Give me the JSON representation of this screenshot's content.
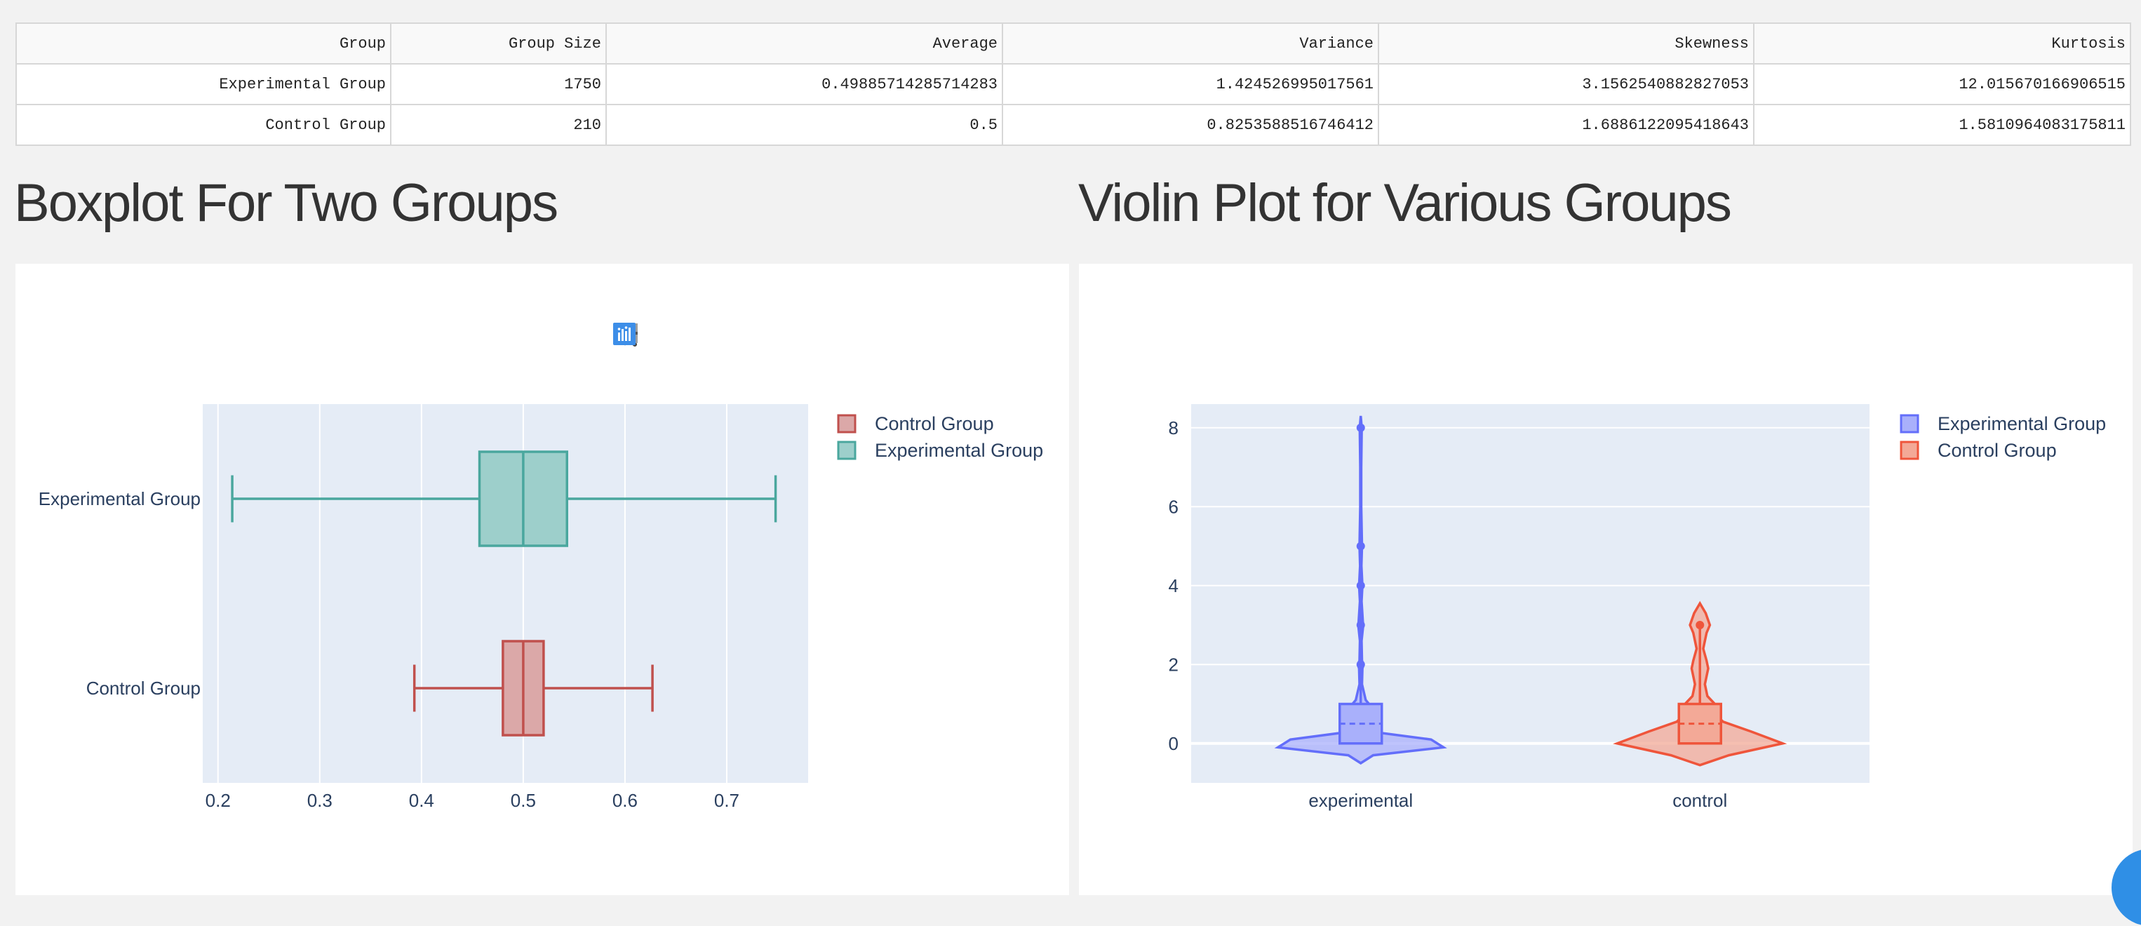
{
  "stats_table": {
    "headers": [
      "Group",
      "Group Size",
      "Average",
      "Variance",
      "Skewness",
      "Kurtosis"
    ],
    "rows": [
      [
        "Experimental Group",
        "1750",
        "0.49885714285714283",
        "1.424526995017561",
        "3.1562540882827053",
        "12.015670166906515"
      ],
      [
        "Control Group",
        "210",
        "0.5",
        "0.8253588516746412",
        "1.6886122095418643",
        "1.5810964083175811"
      ]
    ]
  },
  "boxplot": {
    "title": "Boxplot For Two Groups",
    "modebar": [
      "camera-icon",
      "zoom-icon",
      "pan-icon",
      "zoom-in-icon",
      "zoom-out-icon",
      "autoscale-icon",
      "reset-axes-icon",
      "spike-lines-icon",
      "hover-closest-icon",
      "hover-compare-icon",
      "plotly-logo-icon"
    ]
  },
  "violin": {
    "title": "Violin Plot for Various Groups"
  },
  "chart_data": [
    {
      "type": "box",
      "orientation": "horizontal",
      "title": "Boxplot For Two Groups",
      "xlim": [
        0.185,
        0.78
      ],
      "xticks": [
        "0.2",
        "0.3",
        "0.4",
        "0.5",
        "0.6",
        "0.7"
      ],
      "xtick_values": [
        0.2,
        0.3,
        0.4,
        0.5,
        0.6,
        0.7
      ],
      "grid": true,
      "legend_position": "top-right",
      "legend": [
        "Control Group",
        "Experimental Group"
      ],
      "series": [
        {
          "name": "Experimental Group",
          "color": "#4aa79e",
          "fill": "#9dcfcb",
          "min": 0.214,
          "q1": 0.457,
          "median": 0.5,
          "q3": 0.543,
          "max": 0.748
        },
        {
          "name": "Control Group",
          "color": "#c0504d",
          "fill": "#dba8a8",
          "min": 0.393,
          "q1": 0.48,
          "median": 0.5,
          "q3": 0.52,
          "max": 0.627
        }
      ]
    },
    {
      "type": "violin",
      "title": "Violin Plot for Various Groups",
      "categories": [
        "experimental",
        "control"
      ],
      "ylim": [
        -1,
        8.6
      ],
      "yticks": [
        "0",
        "2",
        "4",
        "6",
        "8"
      ],
      "ytick_values": [
        0,
        2,
        4,
        6,
        8
      ],
      "grid": true,
      "legend_position": "top-right",
      "legend": [
        "Experimental Group",
        "Control Group"
      ],
      "series": [
        {
          "name": "Experimental Group",
          "category": "experimental",
          "color": "#636efa",
          "fill": "#a9b0fb",
          "q1": 0,
          "median": 0,
          "q3": 1,
          "mean": 0.5,
          "upper_fence": 8,
          "outliers": [
            2,
            3,
            4,
            5,
            8
          ],
          "density": [
            [
              -0.5,
              0
            ],
            [
              -0.3,
              0.15
            ],
            [
              -0.1,
              1.0
            ],
            [
              0.1,
              0.85
            ],
            [
              0.3,
              0.12
            ],
            [
              0.6,
              0.04
            ],
            [
              0.9,
              0.07
            ],
            [
              1.0,
              0.1
            ],
            [
              1.1,
              0.06
            ],
            [
              1.5,
              0.015
            ],
            [
              1.9,
              0.02
            ],
            [
              2.0,
              0.035
            ],
            [
              2.1,
              0.015
            ],
            [
              2.6,
              0.01
            ],
            [
              2.9,
              0.025
            ],
            [
              3.0,
              0.03
            ],
            [
              3.1,
              0.025
            ],
            [
              3.6,
              0.01
            ],
            [
              4.0,
              0.02
            ],
            [
              4.5,
              0.008
            ],
            [
              5.0,
              0.015
            ],
            [
              6.0,
              0.006
            ],
            [
              7.0,
              0.006
            ],
            [
              8.0,
              0.012
            ],
            [
              8.3,
              0
            ]
          ]
        },
        {
          "name": "Control Group",
          "category": "control",
          "color": "#ef553b",
          "fill": "#f3a997",
          "q1": 0,
          "median": 0,
          "q3": 1,
          "mean": 0.5,
          "upper_fence": 3,
          "outliers": [
            3
          ],
          "density": [
            [
              -0.55,
              0
            ],
            [
              -0.3,
              0.35
            ],
            [
              0,
              1.0
            ],
            [
              0.3,
              0.62
            ],
            [
              0.55,
              0.28
            ],
            [
              0.8,
              0.16
            ],
            [
              1.0,
              0.18
            ],
            [
              1.2,
              0.09
            ],
            [
              1.5,
              0.06
            ],
            [
              1.9,
              0.1
            ],
            [
              2.1,
              0.08
            ],
            [
              2.4,
              0.04
            ],
            [
              2.6,
              0.06
            ],
            [
              2.8,
              0.08
            ],
            [
              3.0,
              0.12
            ],
            [
              3.3,
              0.07
            ],
            [
              3.55,
              0
            ]
          ]
        }
      ]
    }
  ]
}
